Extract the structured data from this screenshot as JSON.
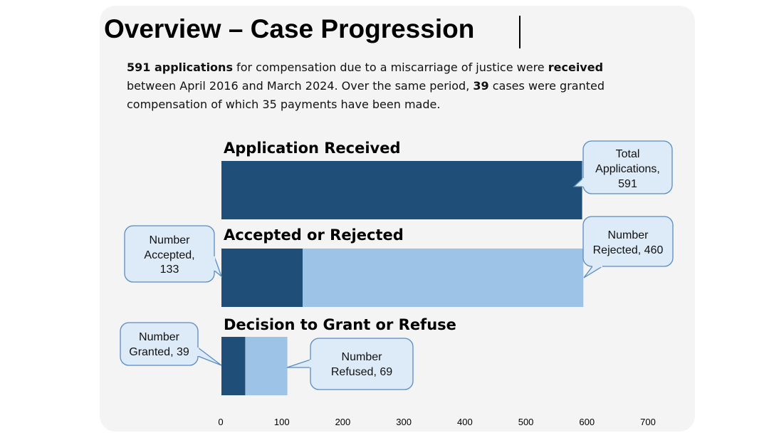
{
  "title": "Overview – Case Progression",
  "summary": {
    "p1_bold": "591 applications",
    "p2": " for compensation due to a miscarriage of justice were ",
    "p3_bold": "received",
    "p4": " between April 2016 and March 2024. Over the same period, ",
    "p5_bold": "39",
    "p6": " cases were granted compensation of which 35 payments have been made."
  },
  "colors": {
    "dark": "#1f4e79",
    "light": "#9dc3e6",
    "callout_fill": "#ddeaf7",
    "callout_border": "#5a8cc2",
    "panel": "#f4f4f4"
  },
  "chart_data": {
    "type": "bar",
    "orientation": "horizontal",
    "stacked": true,
    "xlim": [
      0,
      700
    ],
    "xticks": [
      "0",
      "100",
      "200",
      "300",
      "400",
      "500",
      "600",
      "700"
    ],
    "grid": false,
    "groups": [
      {
        "title": "Application Received",
        "segments": [
          {
            "label": [
              "Total",
              "Applications,",
              "591"
            ],
            "value": 591,
            "color": "dark"
          }
        ]
      },
      {
        "title": "Accepted or Rejected",
        "segments": [
          {
            "label": [
              "Number",
              "Accepted,",
              "133"
            ],
            "value": 133,
            "color": "dark"
          },
          {
            "label": [
              "Number",
              "Rejected, 460"
            ],
            "value": 460,
            "color": "light"
          }
        ]
      },
      {
        "title": "Decision to Grant or Refuse",
        "segments": [
          {
            "label": [
              "Number",
              "Granted, 39"
            ],
            "value": 39,
            "color": "dark"
          },
          {
            "label": [
              "Number",
              "Refused, 69"
            ],
            "value": 69,
            "color": "light"
          }
        ]
      }
    ]
  }
}
